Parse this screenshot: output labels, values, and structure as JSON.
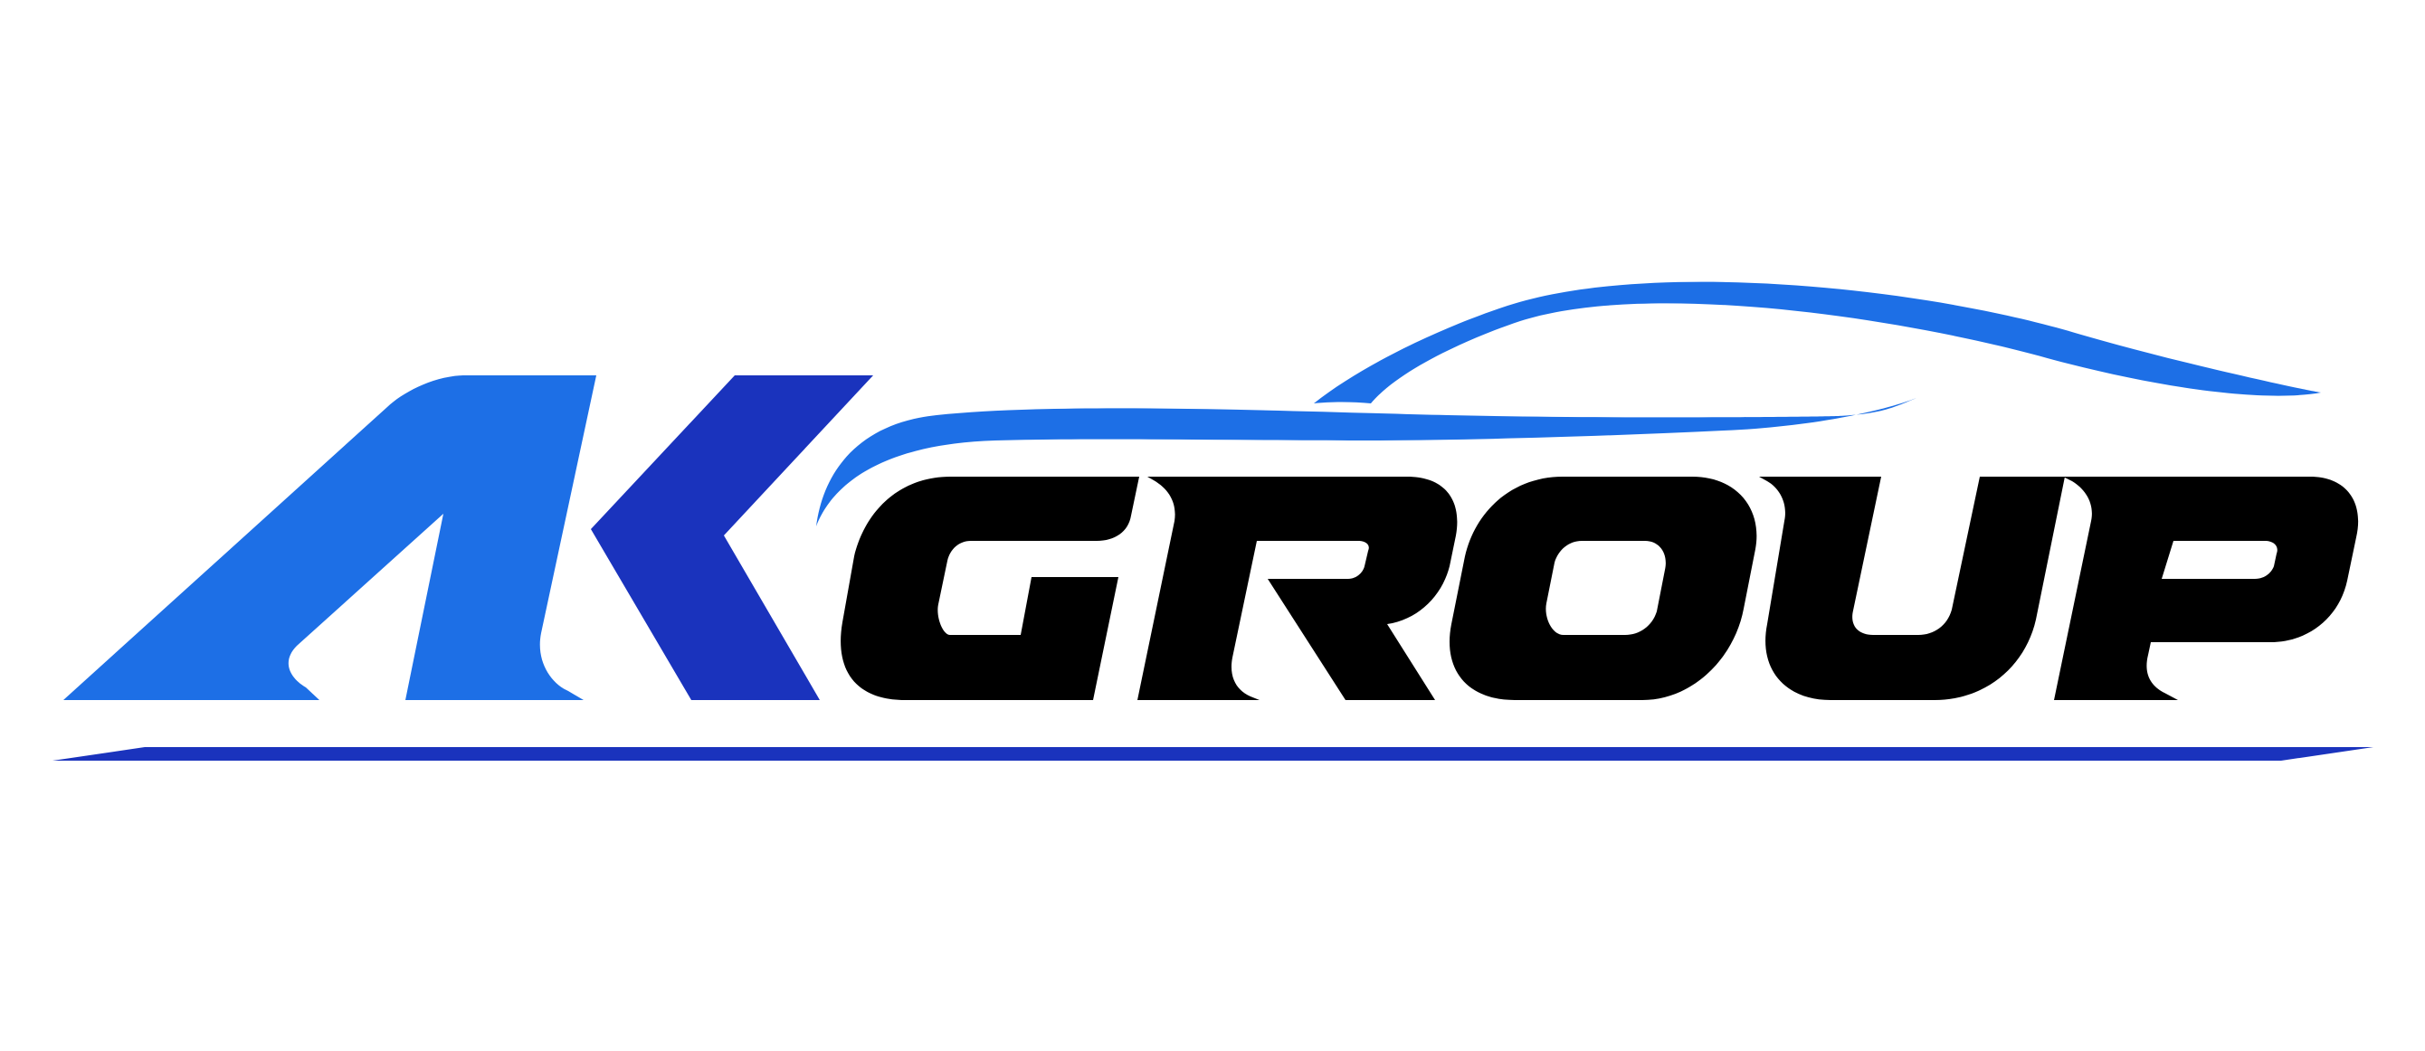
{
  "logo": {
    "brand_text": "AKGROUP",
    "colors": {
      "letter_a": "#1d6fe6",
      "letter_k": "#1a33bd",
      "group_letters": "#000000",
      "swoosh": "#1d6fe6",
      "underline": "#1a33bd",
      "background": "#ffffff"
    },
    "icons": {
      "car_silhouette": "car-silhouette-icon"
    }
  }
}
